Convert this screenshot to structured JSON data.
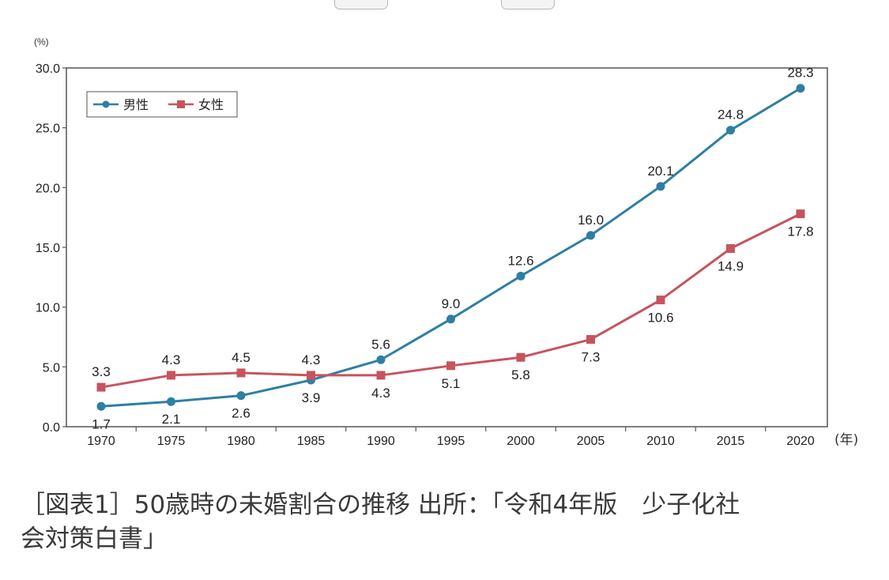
{
  "chart_data": {
    "type": "line",
    "y_unit": "(%)",
    "x_unit": "(年)",
    "categories": [
      "1970",
      "1975",
      "1980",
      "1985",
      "1990",
      "1995",
      "2000",
      "2005",
      "2010",
      "2015",
      "2020"
    ],
    "y_ticks": [
      "0.0",
      "5.0",
      "10.0",
      "15.0",
      "20.0",
      "25.0",
      "30.0"
    ],
    "ylim": [
      0,
      30
    ],
    "legend_position": "top-left",
    "series": [
      {
        "name": "男性",
        "color": "#2e7fa3",
        "marker": "circle",
        "values": [
          1.7,
          2.1,
          2.6,
          3.9,
          5.6,
          9.0,
          12.6,
          16.0,
          20.1,
          24.8,
          28.3
        ],
        "labels": [
          "1.7",
          "2.1",
          "2.6",
          "3.9",
          "5.6",
          "9.0",
          "12.6",
          "16.0",
          "20.1",
          "24.8",
          "28.3"
        ]
      },
      {
        "name": "女性",
        "color": "#c6545f",
        "marker": "square",
        "values": [
          3.3,
          4.3,
          4.5,
          4.3,
          4.3,
          5.1,
          5.8,
          7.3,
          10.6,
          14.9,
          17.8
        ],
        "labels": [
          "3.3",
          "4.3",
          "4.5",
          "4.3",
          "4.3",
          "5.1",
          "5.8",
          "7.3",
          "10.6",
          "14.9",
          "17.8"
        ]
      }
    ]
  },
  "caption": {
    "line1": "［図表1］50歳時の未婚割合の推移 出所：「令和4年版　少子化社",
    "line2": "会対策白書」"
  }
}
